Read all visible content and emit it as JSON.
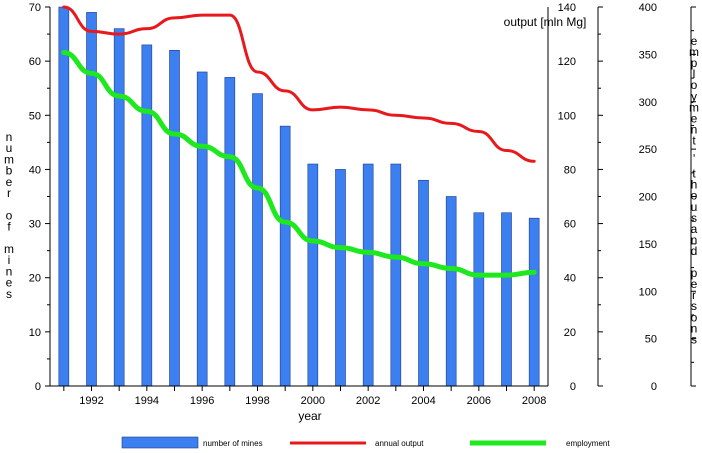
{
  "chart_data": {
    "type": "bar",
    "x": [
      1991,
      1992,
      1993,
      1994,
      1995,
      1996,
      1997,
      1998,
      1999,
      2000,
      2001,
      2002,
      2003,
      2004,
      2005,
      2006,
      2007,
      2008
    ],
    "x_tick_labels": [
      "1992",
      "1994",
      "1996",
      "1998",
      "2000",
      "2002",
      "2004",
      "2006",
      "2008"
    ],
    "xlabel": "year",
    "left_axis": {
      "label": "number of mines",
      "ylim": [
        0,
        70
      ],
      "ticks": [
        "0",
        "10",
        "20",
        "30",
        "40",
        "50",
        "60",
        "70"
      ]
    },
    "right_axis_1": {
      "label": "output [mln Mg]",
      "ylim": [
        0,
        140
      ],
      "ticks": [
        "0",
        "20",
        "40",
        "60",
        "80",
        "100",
        "120",
        "140"
      ]
    },
    "right_axis_2": {
      "label": "employment, thousand persons",
      "ylim": [
        0,
        400
      ],
      "ticks": [
        "0",
        "50",
        "100",
        "150",
        "200",
        "250",
        "300",
        "350",
        "400"
      ]
    },
    "series": [
      {
        "name": "number of mines",
        "kind": "bar",
        "axis": "left",
        "color": "#3c7ff0",
        "values": [
          70,
          69,
          66,
          63,
          62,
          58,
          57,
          54,
          48,
          41,
          40,
          41,
          41,
          38,
          35,
          32,
          32,
          31
        ]
      },
      {
        "name": "annual output",
        "kind": "line",
        "axis": "right_axis_1",
        "color": "#e8191c",
        "values": [
          140,
          131,
          130,
          132,
          136,
          137,
          137,
          116,
          109,
          102,
          103,
          102,
          100,
          99,
          97,
          94,
          87,
          83
        ]
      },
      {
        "name": "employment",
        "kind": "line",
        "axis": "right_axis_2",
        "color": "#1ee81e",
        "values": [
          352,
          330,
          306,
          290,
          266,
          253,
          242,
          209,
          173,
          153,
          146,
          141,
          136,
          129,
          124,
          117,
          117,
          120
        ]
      }
    ],
    "legend": [
      {
        "label": "number of mines",
        "kind": "bar",
        "color": "#3c7ff0"
      },
      {
        "label": "annual output",
        "kind": "line",
        "color": "#e8191c"
      },
      {
        "label": "employment",
        "kind": "line",
        "color": "#1ee81e"
      }
    ],
    "legend_position": "bottom",
    "grid": false
  }
}
